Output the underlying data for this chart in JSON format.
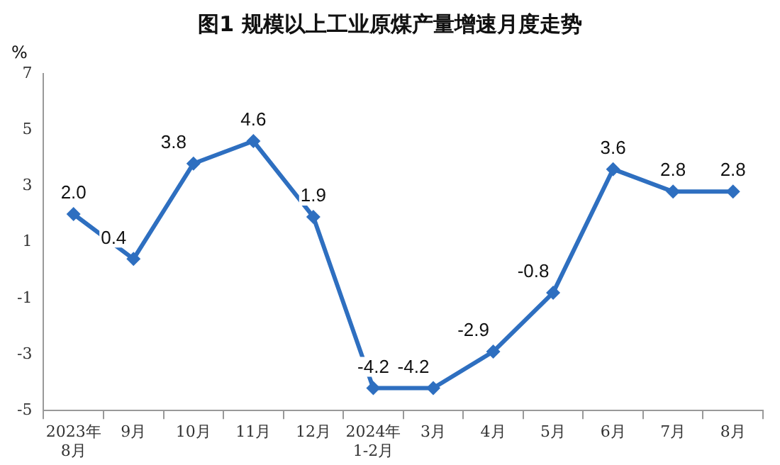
{
  "chart_data": {
    "type": "line",
    "title": "图1  规模以上工业原煤产量增速月度走势",
    "ylabel": "%",
    "categories": [
      "2023年\n8月",
      "9月",
      "10月",
      "11月",
      "12月",
      "2024年\n1-2月",
      "3月",
      "4月",
      "5月",
      "6月",
      "7月",
      "8月"
    ],
    "series": [
      {
        "color": "#2e6fc0",
        "values": [
          2.0,
          0.4,
          3.8,
          4.6,
          1.9,
          -4.2,
          -4.2,
          -2.9,
          -0.8,
          3.6,
          2.8,
          2.8
        ],
        "value_labels": [
          "2.0",
          "0.4",
          "3.8",
          "4.6",
          "1.9",
          "-4.2",
          "-4.2",
          "-2.9",
          "-0.8",
          "3.6",
          "2.8",
          "2.8"
        ]
      }
    ],
    "ylim": [
      -5,
      7
    ],
    "yticks": [
      -5,
      -3,
      -1,
      1,
      3,
      5,
      7
    ],
    "grid": false,
    "legend": false,
    "marker": "diamond",
    "line_style": "solid"
  }
}
